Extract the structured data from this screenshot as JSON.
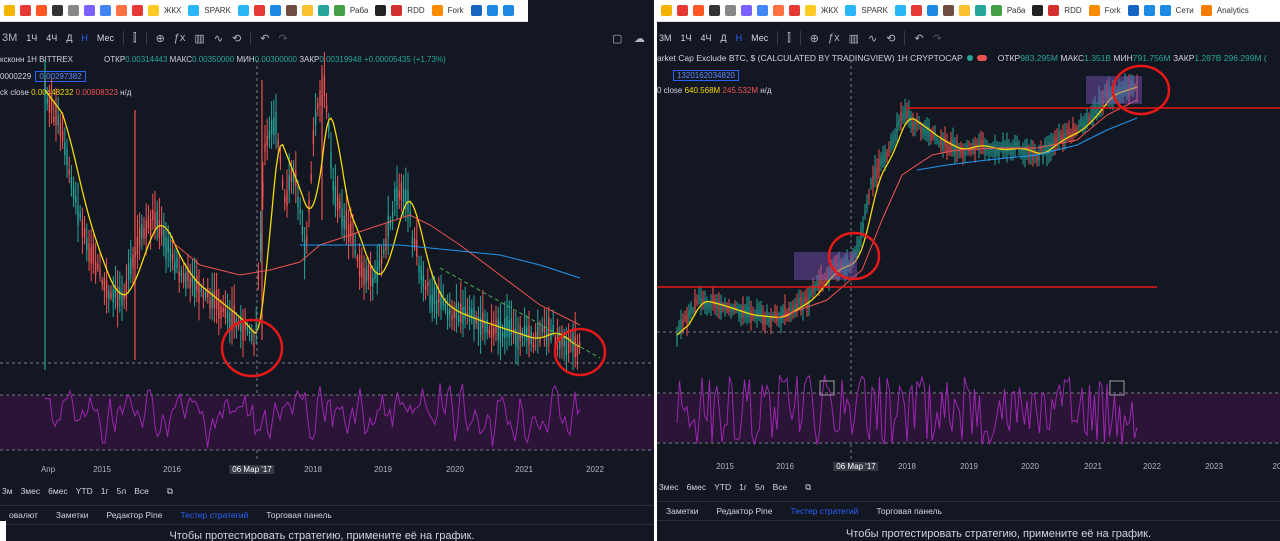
{
  "bookmarks_left": [
    {
      "label": "",
      "color": "#f4b400"
    },
    {
      "label": "",
      "color": "#e53935"
    },
    {
      "label": "",
      "color": "#ff5722"
    },
    {
      "label": "",
      "color": "#333333"
    },
    {
      "label": "",
      "color": "#888888"
    },
    {
      "label": "",
      "color": "#7b61ff"
    },
    {
      "label": "",
      "color": "#4285f4"
    },
    {
      "label": "",
      "color": "#ff7043"
    },
    {
      "label": "",
      "color": "#e53935"
    },
    {
      "label": "ЖКХ",
      "color": "#ffca28"
    },
    {
      "label": "SPARK",
      "color": "#29b6f6"
    },
    {
      "label": "",
      "color": "#29b6f6"
    },
    {
      "label": "",
      "color": "#e53935"
    },
    {
      "label": "",
      "color": "#1e88e5"
    },
    {
      "label": "",
      "color": "#6d4c41"
    },
    {
      "label": "",
      "color": "#fbc02d"
    },
    {
      "label": "",
      "color": "#26a69a"
    },
    {
      "label": "Раба",
      "color": "#43a047"
    },
    {
      "label": "",
      "color": "#222222"
    },
    {
      "label": "RDD",
      "color": "#d32f2f"
    },
    {
      "label": "Fork",
      "color": "#fb8c00"
    },
    {
      "label": "",
      "color": "#1565c0"
    },
    {
      "label": "",
      "color": "#1e88e5"
    },
    {
      "label": "",
      "color": "#1e88e5"
    }
  ],
  "bookmarks_right": [
    {
      "label": "",
      "color": "#f4b400"
    },
    {
      "label": "",
      "color": "#e53935"
    },
    {
      "label": "",
      "color": "#ff5722"
    },
    {
      "label": "",
      "color": "#333333"
    },
    {
      "label": "",
      "color": "#888888"
    },
    {
      "label": "",
      "color": "#7b61ff"
    },
    {
      "label": "",
      "color": "#4285f4"
    },
    {
      "label": "",
      "color": "#ff7043"
    },
    {
      "label": "",
      "color": "#e53935"
    },
    {
      "label": "ЖКХ",
      "color": "#ffca28"
    },
    {
      "label": "SPARK",
      "color": "#29b6f6"
    },
    {
      "label": "",
      "color": "#29b6f6"
    },
    {
      "label": "",
      "color": "#e53935"
    },
    {
      "label": "",
      "color": "#1e88e5"
    },
    {
      "label": "",
      "color": "#6d4c41"
    },
    {
      "label": "",
      "color": "#fbc02d"
    },
    {
      "label": "",
      "color": "#26a69a"
    },
    {
      "label": "Раба",
      "color": "#43a047"
    },
    {
      "label": "",
      "color": "#222222"
    },
    {
      "label": "RDD",
      "color": "#d32f2f"
    },
    {
      "label": "Fork",
      "color": "#fb8c00"
    },
    {
      "label": "",
      "color": "#1565c0"
    },
    {
      "label": "",
      "color": "#1e88e5"
    },
    {
      "label": "Сети",
      "color": "#1e88e5"
    },
    {
      "label": "Analytics",
      "color": "#f57c00"
    }
  ],
  "left": {
    "toolbar": {
      "intervals": [
        "3М",
        "1Ч",
        "4Ч",
        "Д",
        "Н",
        "Мес"
      ]
    },
    "legend": {
      "title": "ксконн  1H  BITTREX",
      "open_label": "ОТКР",
      "open": "0.00314443",
      "high_label": "МАКС",
      "high": "0.00350000",
      "low_label": "МИН",
      "low": "0.00300000",
      "close_label": "ЗАКР",
      "close": "0.00319948",
      "change": "+0.00005435 (+1.73%)",
      "vol": "0000229",
      "price_box": "0.00297382",
      "ind_label": "ck close",
      "ind_a": "0.00448232",
      "ind_b": "0.00808323",
      "ind_na": "н/д"
    },
    "xaxis": [
      "Апр",
      "2015",
      "2016",
      "06 Мар '17",
      "2018",
      "2019",
      "2020",
      "2021",
      "2022"
    ],
    "ranges": [
      "3м",
      "3мес",
      "6мес",
      "YTD",
      "1г",
      "5л",
      "Все"
    ],
    "tabs": [
      "овалют",
      "Заметки",
      "Редактор Pine",
      "Тестер стратегий",
      "Торговая панель"
    ],
    "active_tab": "Тестер стратегий",
    "message": "Чтобы протестировать стратегию, примените её на график."
  },
  "right": {
    "toolbar": {
      "intervals": [
        "3М",
        "1Ч",
        "4Ч",
        "Д",
        "Н",
        "Мес"
      ]
    },
    "legend": {
      "title": "arket Cap Exclude BTC, $ (CALCULATED BY TRADINGVIEW)  1H  CRYPTOCAP",
      "open_label": "ОТКР",
      "open": "983.295M",
      "high_label": "МАКС",
      "high": "1.351B",
      "low_label": "МИН",
      "low": "791.756M",
      "close_label": "ЗАКР",
      "close": "1.287B",
      "change": "296.299M (",
      "price_box": "1320162034820",
      "ind_label": "0 close",
      "ind_a": "640.568M",
      "ind_b": "245.532M",
      "ind_na": "н/д"
    },
    "xaxis": [
      "2015",
      "2016",
      "06 Мар '17",
      "2018",
      "2019",
      "2020",
      "2021",
      "2022",
      "2023",
      "20"
    ],
    "ranges": [
      "3мес",
      "6мес",
      "YTD",
      "1г",
      "5л",
      "Все"
    ],
    "tabs": [
      "Заметки",
      "Редактор Pine",
      "Тестер стратегий",
      "Торговая панель"
    ],
    "active_tab": "Тестер стратегий",
    "message": "Чтобы протестировать стратегию, примените её на график."
  },
  "colors": {
    "bg": "#131722",
    "up": "#26a69a",
    "down": "#ef5350",
    "ma_fast": "#f5d90a",
    "ma_mid": "#ef5350",
    "ma_slow": "#2196f3",
    "rsi": "#9c27b0",
    "circle": "#e81818",
    "accent": "#2962ff"
  }
}
